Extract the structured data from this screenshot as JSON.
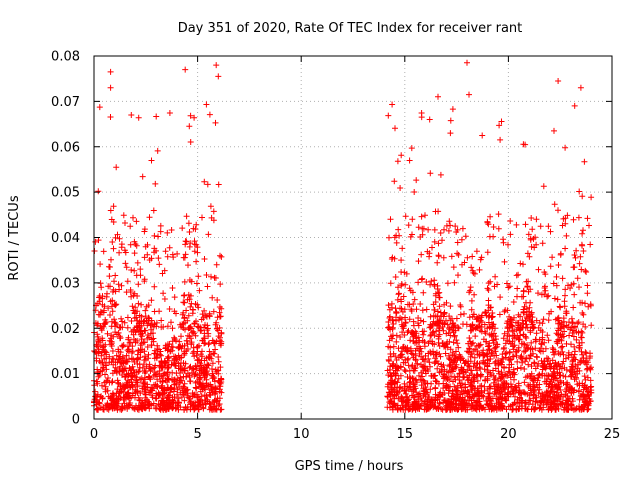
{
  "chart_data": {
    "type": "scatter",
    "title": "Day 351 of 2020, Rate Of TEC Index for receiver rant",
    "xlabel": "GPS time / hours",
    "ylabel": "ROTI / TECUs",
    "xlim": [
      0,
      25
    ],
    "ylim": [
      0,
      0.08
    ],
    "x_ticks": [
      "0",
      "5",
      "10",
      "15",
      "20",
      "25"
    ],
    "y_ticks": [
      "0",
      "0.01",
      "0.02",
      "0.03",
      "0.04",
      "0.05",
      "0.06",
      "0.07",
      "0.08"
    ],
    "grid": true,
    "legend": "none",
    "marker": "plus",
    "color": "#ff0000",
    "coverage_hours": [
      [
        0.0,
        6.15
      ],
      [
        14.15,
        24.0
      ]
    ],
    "typical_range": [
      0.002,
      0.03
    ],
    "notable_points": [
      {
        "x": 0.8,
        "y": 0.0765
      },
      {
        "x": 0.8,
        "y": 0.073
      },
      {
        "x": 1.8,
        "y": 0.067
      },
      {
        "x": 4.4,
        "y": 0.077
      },
      {
        "x": 4.6,
        "y": 0.0645
      },
      {
        "x": 5.9,
        "y": 0.078
      },
      {
        "x": 6.0,
        "y": 0.0755
      },
      {
        "x": 16.2,
        "y": 0.066
      },
      {
        "x": 16.6,
        "y": 0.071
      },
      {
        "x": 17.2,
        "y": 0.063
      },
      {
        "x": 18.0,
        "y": 0.0785
      },
      {
        "x": 18.1,
        "y": 0.0715
      },
      {
        "x": 19.6,
        "y": 0.0615
      },
      {
        "x": 22.2,
        "y": 0.0635
      },
      {
        "x": 22.4,
        "y": 0.0745
      },
      {
        "x": 23.2,
        "y": 0.069
      },
      {
        "x": 23.5,
        "y": 0.073
      }
    ]
  }
}
